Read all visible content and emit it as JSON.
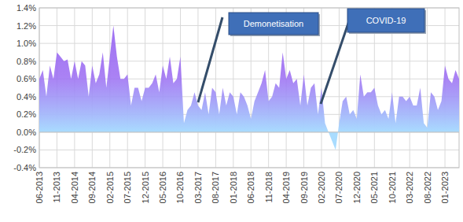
{
  "chart_data": {
    "type": "area",
    "categories": [
      "06-2013",
      null,
      null,
      null,
      null,
      "11-2013",
      null,
      null,
      null,
      null,
      "04-2014",
      null,
      null,
      null,
      null,
      "09-2014",
      null,
      null,
      null,
      null,
      "02-2015",
      null,
      null,
      null,
      null,
      "07-2015",
      null,
      null,
      null,
      null,
      "12-2015",
      null,
      null,
      null,
      null,
      "05-2016",
      null,
      null,
      null,
      null,
      "10-2016",
      null,
      null,
      null,
      null,
      "03-2017",
      null,
      null,
      null,
      null,
      "08-2017",
      null,
      null,
      null,
      null,
      "01-2018",
      null,
      null,
      null,
      null,
      "06-2018",
      null,
      null,
      null,
      null,
      "11-2018",
      null,
      null,
      null,
      null,
      "04-2019",
      null,
      null,
      null,
      null,
      "09-2019",
      null,
      null,
      null,
      null,
      "02-2020",
      null,
      null,
      null,
      null,
      "07-2020",
      null,
      null,
      null,
      null,
      "12-2020",
      null,
      null,
      null,
      null,
      "05-2021",
      null,
      null,
      null,
      null,
      "10-2021",
      null,
      null,
      null,
      null,
      "03-2022",
      null,
      null,
      null,
      null,
      "08-2022",
      null,
      null,
      null,
      null,
      "01-2023",
      null,
      null,
      null,
      null
    ],
    "series": [
      {
        "color": "#9b6bf2",
        "values": [
          0.6,
          0.7,
          0.4,
          0.75,
          0.6,
          0.9,
          0.85,
          0.8,
          0.82,
          0.6,
          0.8,
          0.6,
          0.8,
          0.75,
          0.4,
          0.75,
          0.55,
          0.65,
          0.9,
          0.5,
          0.85,
          1.2,
          0.85,
          0.6,
          0.6,
          0.65,
          0.3,
          0.5,
          0.5,
          0.35,
          0.5,
          0.5,
          0.55,
          0.65,
          0.45,
          0.75,
          0.6,
          0.85,
          0.55,
          0.6,
          0.85,
          0.1,
          0.25,
          0.3,
          0.45,
          0.3,
          0.25,
          0.45,
          0.2,
          0.5,
          0.45,
          0.2,
          0.5,
          0.3,
          0.45,
          0.4,
          0.2,
          0.45,
          0.4,
          0.3,
          0.15,
          0.35,
          0.45,
          0.55,
          0.7,
          0.35,
          0.4,
          0.55,
          0.5,
          0.9,
          0.6,
          0.7,
          0.55,
          0.6,
          0.3,
          0.65,
          0.3,
          0.5,
          0.55,
          0.2,
          0.5,
          0.1,
          0.0,
          -0.1,
          -0.2,
          0.1,
          0.35,
          0.4,
          0.2,
          0.25,
          0.15,
          0.65,
          0.4,
          0.45,
          0.45,
          0.5,
          0.3,
          0.2,
          0.25,
          0.15,
          0.45,
          0.1,
          0.4,
          0.4,
          0.35,
          0.4,
          0.3,
          0.3,
          0.5,
          0.1,
          0.05,
          0.45,
          0.4,
          0.25,
          0.35,
          0.75,
          0.6,
          0.55,
          0.7,
          0.6
        ]
      }
    ],
    "ylim": [
      -0.4,
      1.4
    ],
    "yticks": [
      {
        "value": -0.4,
        "label": "-0.4%"
      },
      {
        "value": -0.2,
        "label": "-0.2%"
      },
      {
        "value": 0,
        "label": "0.0%"
      },
      {
        "value": 0.2,
        "label": "0.2%"
      },
      {
        "value": 0.4,
        "label": "0.4%"
      },
      {
        "value": 0.6,
        "label": "0.6%"
      },
      {
        "value": 0.8,
        "label": "0.8%"
      },
      {
        "value": 1.0,
        "label": "1.0%"
      },
      {
        "value": 1.2,
        "label": "1.2%"
      },
      {
        "value": 1.4,
        "label": "1.4%"
      }
    ],
    "grid": true,
    "annotations": [
      {
        "text": "Demonetisation"
      },
      {
        "text": "COVID-19"
      }
    ]
  }
}
